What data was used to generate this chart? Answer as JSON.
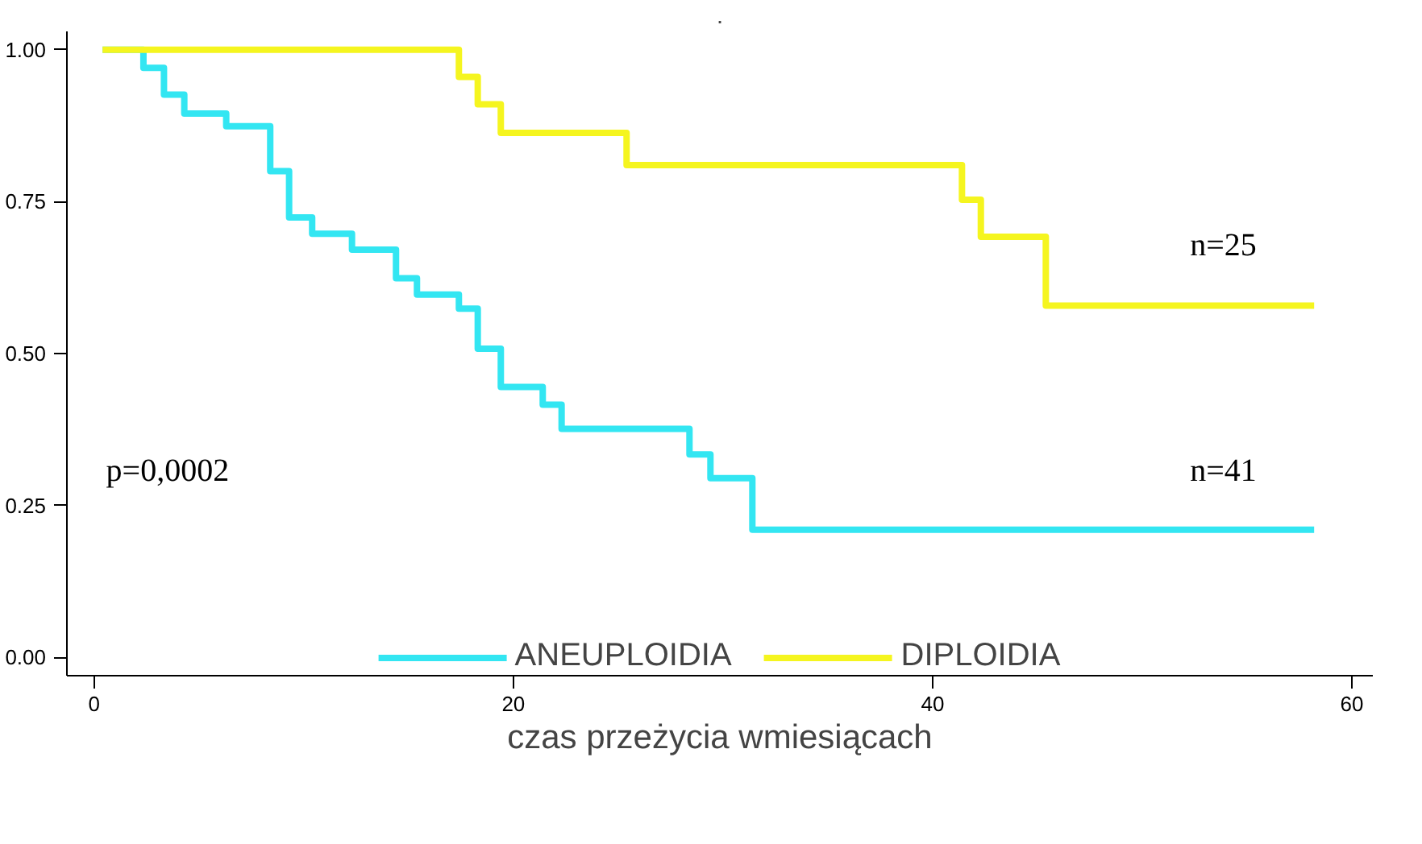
{
  "chart_data": {
    "type": "step",
    "title": ".",
    "xlabel": "czas przeżycia wmiesiącach",
    "xlim": [
      -1.3,
      61
    ],
    "ylim": [
      -0.03,
      1.03
    ],
    "xticks": [
      0,
      20,
      40,
      60
    ],
    "yticks": [
      {
        "value": 0,
        "label": "0.00"
      },
      {
        "value": 0.25,
        "label": "0.25"
      },
      {
        "value": 0.5,
        "label": "0.50"
      },
      {
        "value": 0.75,
        "label": "0.75"
      },
      {
        "value": 1,
        "label": "1.00"
      }
    ],
    "grid": false,
    "legend": "bottom",
    "marker": "none",
    "line_style": "solid",
    "series": [
      {
        "name": "ANEUPLOIDIA",
        "color": "#33e6f2",
        "x": [
          0.4,
          2.35,
          3.33,
          4.3,
          6.3,
          8.4,
          9.3,
          10.4,
          12.3,
          14.4,
          15.4,
          17.4,
          18.3,
          19.4,
          21.4,
          22.3,
          28.4,
          29.4,
          31.4,
          58.2
        ],
        "values": [
          1.0,
          0.97,
          0.926,
          0.895,
          0.874,
          0.8,
          0.724,
          0.697,
          0.671,
          0.624,
          0.597,
          0.574,
          0.508,
          0.445,
          0.416,
          0.376,
          0.334,
          0.295,
          0.21,
          0.21
        ]
      },
      {
        "name": "DIPLOIDIA",
        "color": "#f5f51f",
        "x": [
          0.4,
          17.4,
          18.3,
          19.4,
          25.4,
          41.4,
          42.3,
          45.4,
          58.2
        ],
        "values": [
          1.0,
          0.955,
          0.91,
          0.863,
          0.81,
          0.753,
          0.692,
          0.579,
          0.579
        ]
      }
    ],
    "annotations": [
      "p=0,0002",
      "n=25",
      "n=41"
    ]
  }
}
